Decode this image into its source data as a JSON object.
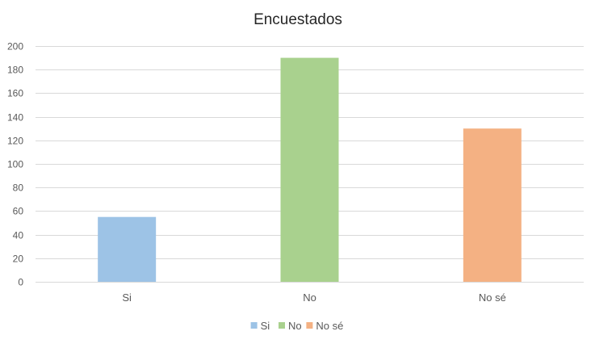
{
  "chart_data": {
    "type": "bar",
    "title": "Encuestados",
    "categories": [
      "Si",
      "No",
      "No sé"
    ],
    "values": [
      55,
      190,
      130
    ],
    "colors": [
      "#9dc3e6",
      "#a9d18e",
      "#f4b183"
    ],
    "ylim": [
      0,
      200
    ],
    "yticks": [
      "0",
      "20",
      "40",
      "60",
      "80",
      "100",
      "120",
      "140",
      "160",
      "180",
      "200"
    ],
    "grid": true,
    "legend": {
      "placement": "bottom",
      "entries": [
        "Si",
        "No",
        "No sé"
      ]
    },
    "gridColor": "#d9d9d9",
    "textColor": "#595959"
  }
}
